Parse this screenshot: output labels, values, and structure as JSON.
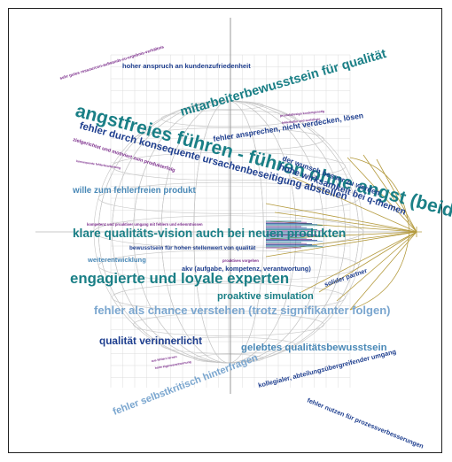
{
  "colors": {
    "teal": "#1a7f86",
    "steel_blue": "#4a89b7",
    "navy": "#1f3f8f",
    "light_blue": "#7aa6cf",
    "purple": "#7b2d8b",
    "grid": "#cfcfcf",
    "gold": "#b49a3d"
  },
  "words": [
    {
      "text": "sehr gutes ressourcen-aufwands-zu-ergebnis-verhältnis",
      "color": "#7b2d8b"
    },
    {
      "text": "hoher anspruch an kundenzufriedenheit",
      "color": "#1f3f8f"
    },
    {
      "text": "mitarbeiterbewusstsein für qualität",
      "color": "#1a7f86"
    },
    {
      "text": "angstfreies führen - führen ohne angst (beidseitig)",
      "color": "#1a7f86"
    },
    {
      "text": "fehler durch konsequente ursachenbeseitigung abstellen",
      "color": "#1f3f8f"
    },
    {
      "text": "fehler ansprechen, nicht verdecken, lösen",
      "color": "#1f3f8f"
    },
    {
      "text": "produktdesign kostengünstig",
      "color": "#7b2d8b"
    },
    {
      "text": "fehlerkultur und ausfallrate",
      "color": "#7b2d8b"
    },
    {
      "text": "zielgerichtet und motiviert zum produkterfolg",
      "color": "#7b2d8b"
    },
    {
      "text": "konsequente fehlerbearbeitung",
      "color": "#7b2d8b"
    },
    {
      "text": "der wunsch besser zu werden",
      "color": "#1f3f8f"
    },
    {
      "text": "hohe wirksamkeit bei q-themen",
      "color": "#1f3f8f"
    },
    {
      "text": "wille zum fehlerfreien produkt",
      "color": "#4a89b7"
    },
    {
      "text": "kompetenz und proaktiver umgang mit fehlern und erkenntnissen",
      "color": "#7b2d8b"
    },
    {
      "text": "klare qualitäts-vision auch bei neuen produkten",
      "color": "#1a7f86"
    },
    {
      "text": "bewusstsein für hohen stellenwert von qualität",
      "color": "#1f3f8f"
    },
    {
      "text": "weiterentwicklung",
      "color": "#4a89b7"
    },
    {
      "text": "proaktives vorgehen",
      "color": "#7b2d8b"
    },
    {
      "text": "akv (aufgabe, kompetenz, verantwortung)",
      "color": "#1f3f8f"
    },
    {
      "text": "engagierte und loyale experten",
      "color": "#1a7f86"
    },
    {
      "text": "solider partner",
      "color": "#1f3f8f"
    },
    {
      "text": "proaktive simulation",
      "color": "#1a7f86"
    },
    {
      "text": "fehler als chance verstehen (trotz signifikanter folgen)",
      "color": "#7aa6cf"
    },
    {
      "text": "qualität verinnerlicht",
      "color": "#1f3f8f"
    },
    {
      "text": "gelebtes qualitätsbewusstsein",
      "color": "#4a89b7"
    },
    {
      "text": "aus fehlern lernen",
      "color": "#7b2d8b"
    },
    {
      "text": "hohe eigenverantwortung",
      "color": "#7b2d8b"
    },
    {
      "text": "fehler selbstkritisch hinterfragen",
      "color": "#7aa6cf"
    },
    {
      "text": "kollegialer, abteilungsübergreifender umgang",
      "color": "#1f3f8f"
    },
    {
      "text": "fehler nutzen für prozessverbesserungen",
      "color": "#1f3f8f"
    }
  ]
}
